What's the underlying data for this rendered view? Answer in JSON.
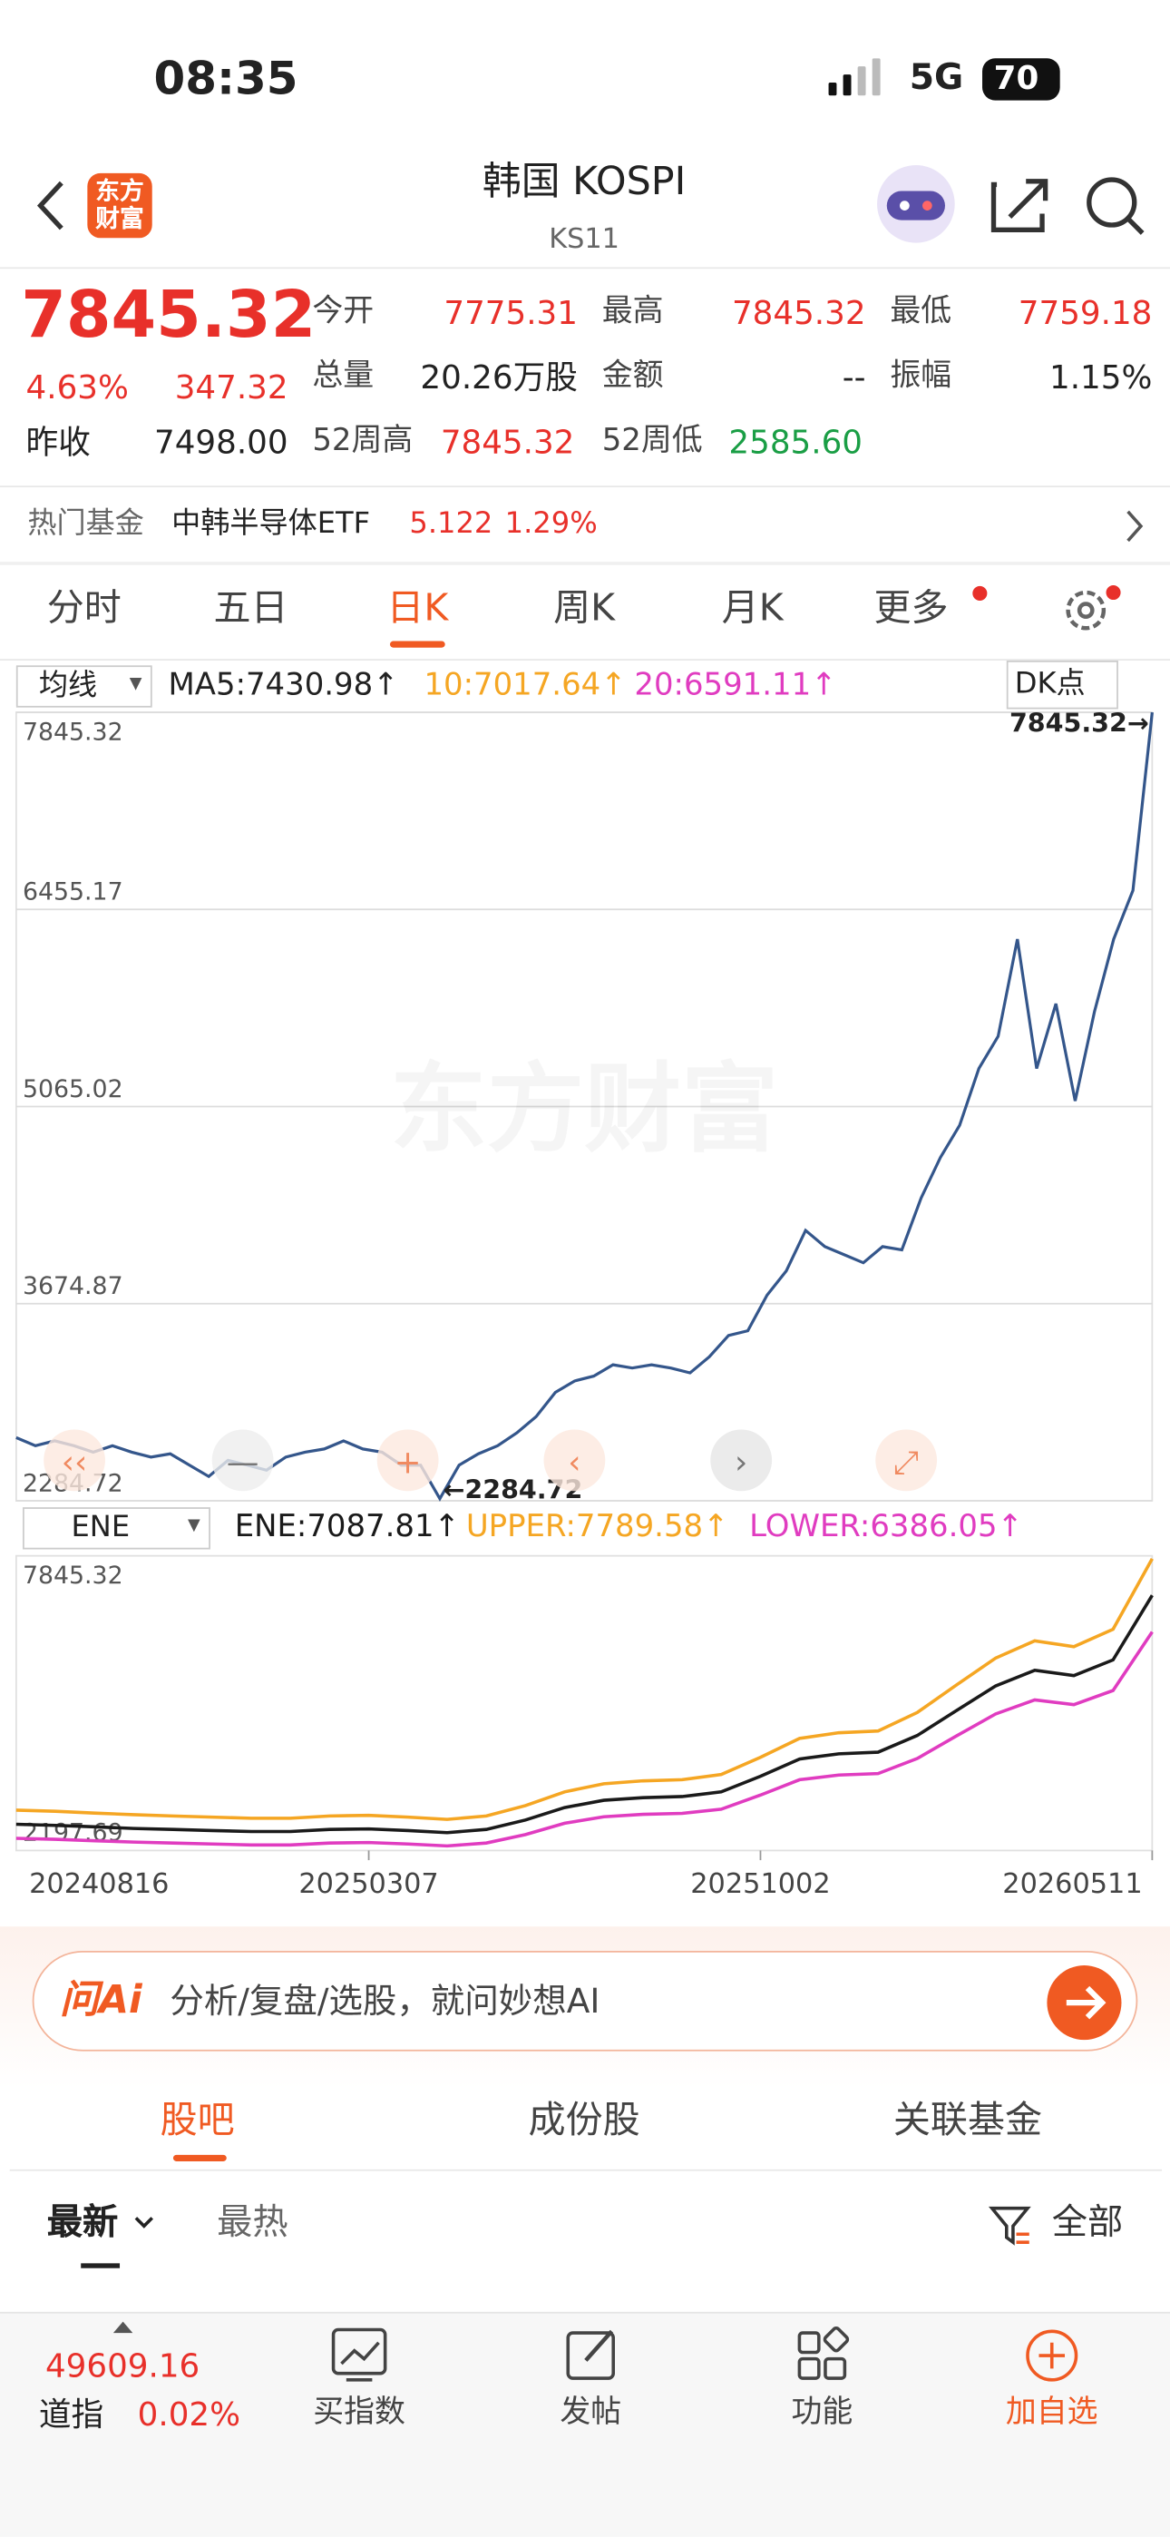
{
  "status": {
    "time": "08:35",
    "network": "5G",
    "battery": "70"
  },
  "header": {
    "logo": [
      "东方",
      "财富"
    ],
    "title": "韩国 KOSPI",
    "code": "KS11"
  },
  "quote": {
    "price": "7845.32",
    "change_pct": "4.63%",
    "change": "347.32",
    "prev_close_label": "昨收",
    "prev_close": "7498.00",
    "fields": [
      {
        "label": "今开",
        "value": "7775.31",
        "tone": "up"
      },
      {
        "label": "最高",
        "value": "7845.32",
        "tone": "up"
      },
      {
        "label": "最低",
        "value": "7759.18",
        "tone": "up"
      },
      {
        "label": "总量",
        "value": "20.26万股",
        "tone": "flat"
      },
      {
        "label": "金额",
        "value": "--",
        "tone": "flat"
      },
      {
        "label": "振幅",
        "value": "1.15%",
        "tone": "flat"
      },
      {
        "label": "52周高",
        "value": "7845.32",
        "tone": "up"
      },
      {
        "label": "52周低",
        "value": "2585.60",
        "tone": "down"
      }
    ]
  },
  "hot_fund": {
    "label": "热门基金",
    "name": "中韩半导体ETF",
    "price": "5.122",
    "change": "1.29%"
  },
  "period_tabs": {
    "items": [
      "分时",
      "五日",
      "日K",
      "周K",
      "月K",
      "更多"
    ],
    "active": 2
  },
  "watermark": "东方财富",
  "chart_data": [
    {
      "type": "line",
      "selector": "均线",
      "legend": [
        {
          "text": "MA5:7430.98↑",
          "color": "#222222"
        },
        {
          "text": "10:7017.64↑",
          "color": "#f5a623"
        },
        {
          "text": "20:6591.11↑",
          "color": "#e03cc0"
        }
      ],
      "button": "DK点",
      "color": "#34568b",
      "values": [
        2730,
        2673,
        2707,
        2673,
        2627,
        2673,
        2627,
        2593,
        2616,
        2536,
        2456,
        2570,
        2536,
        2500,
        2593,
        2627,
        2650,
        2707,
        2650,
        2627,
        2536,
        2536,
        2300,
        2536,
        2616,
        2673,
        2764,
        2878,
        3050,
        3130,
        3164,
        3244,
        3221,
        3244,
        3221,
        3187,
        3300,
        3450,
        3484,
        3735,
        3906,
        4191,
        4077,
        4020,
        3963,
        4077,
        4054,
        4420,
        4705,
        4933,
        5333,
        5561,
        6246,
        5333,
        5790,
        5105,
        5733,
        6246,
        6589,
        7845.32
      ],
      "ylim": [
        2284.72,
        7845.32
      ],
      "yticks": [
        2284.72,
        3674.87,
        5065.02,
        6455.17,
        7845.32
      ],
      "grid": true,
      "annotations": [
        {
          "text": "7845.32→",
          "index": 59
        },
        {
          "text": "←2284.72",
          "index": 22
        }
      ]
    },
    {
      "type": "line",
      "selector": "ENE",
      "categories": [
        "20240816",
        null,
        null,
        null,
        null,
        null,
        null,
        null,
        null,
        "20250307",
        null,
        null,
        null,
        null,
        null,
        null,
        null,
        null,
        null,
        "20251002",
        null,
        null,
        null,
        null,
        null,
        null,
        null,
        null,
        null,
        "20260511"
      ],
      "series": [
        {
          "name": "ENE:7087.81↑",
          "color": "#1a1a1a",
          "values": [
            2700,
            2680,
            2650,
            2620,
            2600,
            2580,
            2560,
            2560,
            2600,
            2610,
            2580,
            2540,
            2600,
            2780,
            3020,
            3160,
            3210,
            3230,
            3320,
            3620,
            3950,
            4050,
            4080,
            4400,
            4880,
            5350,
            5650,
            5550,
            5850,
            7087.81
          ]
        },
        {
          "name": "UPPER:7789.58↑",
          "color": "#f5a623",
          "values": [
            2970,
            2948,
            2915,
            2882,
            2860,
            2838,
            2816,
            2816,
            2860,
            2871,
            2838,
            2794,
            2860,
            3058,
            3322,
            3476,
            3531,
            3553,
            3652,
            3982,
            4345,
            4455,
            4488,
            4840,
            5368,
            5885,
            6215,
            6105,
            6435,
            7789.58
          ]
        },
        {
          "name": "LOWER:6386.05↑",
          "color": "#e03cc0",
          "values": [
            2430,
            2412,
            2385,
            2358,
            2340,
            2322,
            2304,
            2304,
            2340,
            2349,
            2322,
            2286,
            2340,
            2502,
            2718,
            2844,
            2889,
            2907,
            2988,
            3258,
            3555,
            3645,
            3672,
            3960,
            4392,
            4815,
            5085,
            4995,
            5265,
            6386.05
          ]
        }
      ],
      "ylim": [
        2197.69,
        7845.32
      ],
      "yticks": [
        2197.69,
        7845.32
      ]
    }
  ],
  "ai_bar": {
    "logo": "问Ai",
    "placeholder": "分析/复盘/选股，就问妙想AI"
  },
  "section_tabs": {
    "items": [
      "股吧",
      "成份股",
      "关联基金"
    ],
    "active": 0
  },
  "sub_tabs": {
    "latest": "最新",
    "hot": "最热",
    "filter": "全部"
  },
  "bottom_bar": {
    "index_value": "49609.16",
    "index_name": "道指",
    "index_change": "0.02%",
    "actions": [
      "买指数",
      "发帖",
      "功能",
      "加自选"
    ]
  }
}
